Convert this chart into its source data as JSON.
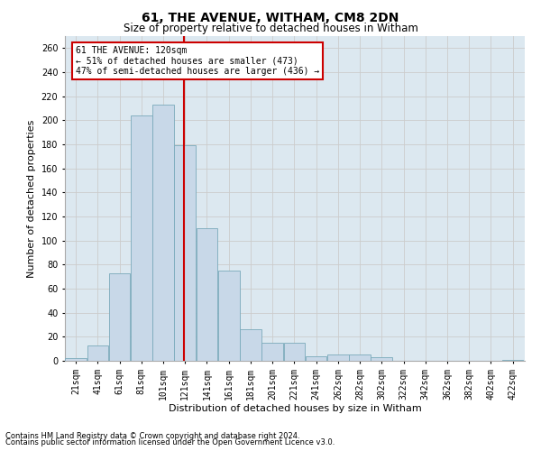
{
  "title1": "61, THE AVENUE, WITHAM, CM8 2DN",
  "title2": "Size of property relative to detached houses in Witham",
  "xlabel": "Distribution of detached houses by size in Witham",
  "ylabel": "Number of detached properties",
  "footnote1": "Contains HM Land Registry data © Crown copyright and database right 2024.",
  "footnote2": "Contains public sector information licensed under the Open Government Licence v3.0.",
  "annotation_title": "61 THE AVENUE: 120sqm",
  "annotation_line1": "← 51% of detached houses are smaller (473)",
  "annotation_line2": "47% of semi-detached houses are larger (436) →",
  "bar_color": "#c8d8e8",
  "bar_edge_color": "#7aaabb",
  "property_size": 120,
  "categories": [
    "21sqm",
    "41sqm",
    "61sqm",
    "81sqm",
    "101sqm",
    "121sqm",
    "141sqm",
    "161sqm",
    "181sqm",
    "201sqm",
    "221sqm",
    "241sqm",
    "262sqm",
    "282sqm",
    "302sqm",
    "322sqm",
    "342sqm",
    "362sqm",
    "382sqm",
    "402sqm",
    "422sqm"
  ],
  "values": [
    2,
    13,
    73,
    204,
    213,
    179,
    110,
    75,
    26,
    15,
    15,
    4,
    5,
    5,
    3,
    0,
    0,
    0,
    0,
    0,
    1
  ],
  "ylim": [
    0,
    270
  ],
  "yticks": [
    0,
    20,
    40,
    60,
    80,
    100,
    120,
    140,
    160,
    180,
    200,
    220,
    240,
    260
  ],
  "grid_color": "#cccccc",
  "background_color": "#dce8f0",
  "vline_color": "#cc0000",
  "title1_fontsize": 10,
  "title2_fontsize": 8.5,
  "ylabel_fontsize": 8,
  "xlabel_fontsize": 8,
  "tick_fontsize": 7,
  "annot_fontsize": 7,
  "footnote_fontsize": 6
}
